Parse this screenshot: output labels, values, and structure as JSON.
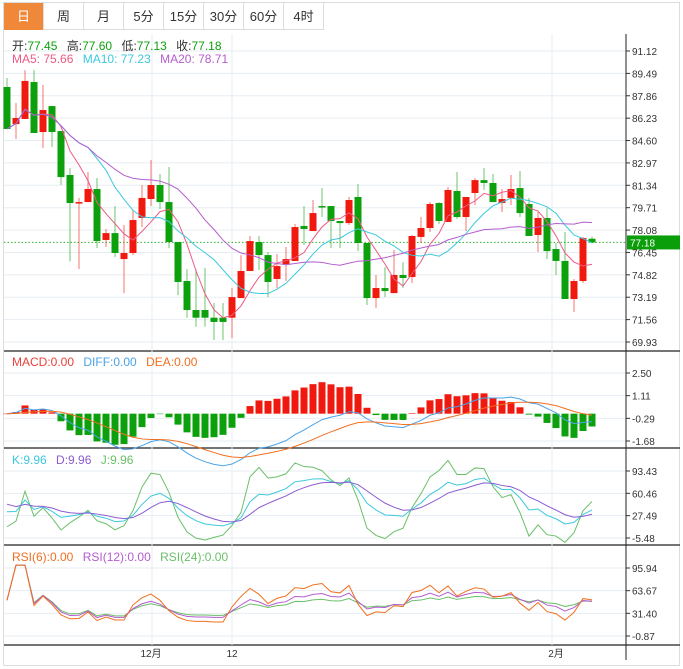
{
  "tabs": [
    "日",
    "周",
    "月",
    "5分",
    "15分",
    "30分",
    "60分",
    "4时"
  ],
  "active_tab": 0,
  "ohlc_legend": {
    "open_label": "开:",
    "open": "77.45",
    "high_label": "高:",
    "high": "77.60",
    "low_label": "低:",
    "low": "77.13",
    "close_label": "收:",
    "close": "77.18"
  },
  "ma_legend": {
    "ma5": "MA5: 75.66",
    "ma10": "MA10: 77.23",
    "ma20": "MA20: 78.71"
  },
  "macd_legend": {
    "macd": "MACD:0.00",
    "diff": "DIFF:0.00",
    "dea": "DEA:0.00"
  },
  "kdj_legend": {
    "k": "K:9.96",
    "d": "D:9.96",
    "j": "J:9.96"
  },
  "rsi_legend": {
    "rsi6": "RSI(6):0.00",
    "rsi12": "RSI(12):0.00",
    "rsi24": "RSI(24):0.00"
  },
  "current_price": "77.18",
  "colors": {
    "up": "#f0190f",
    "down": "#0ca10c",
    "ma5": "#ec5a84",
    "ma10": "#3cc8dd",
    "ma20": "#b55ccf",
    "accent": "#f0883a",
    "diff": "#4aa3e8",
    "dea": "#f07020",
    "k": "#3cc8dd",
    "d": "#8a5cd0",
    "j": "#6abf69"
  },
  "chart_data": {
    "type": "candlestick",
    "price_axis": [
      "91.12",
      "89.49",
      "87.86",
      "86.23",
      "84.60",
      "82.97",
      "81.34",
      "79.71",
      "78.08",
      "76.45",
      "74.82",
      "73.19",
      "71.56",
      "69.93"
    ],
    "price_range": [
      69.93,
      91.12
    ],
    "macd_axis": [
      "2.50",
      "1.11",
      "-0.29",
      "-1.68"
    ],
    "kdj_axis": [
      "93.43",
      "60.46",
      "27.49",
      "-5.48"
    ],
    "rsi_axis": [
      "95.94",
      "63.67",
      "31.40",
      "-0.87"
    ],
    "x_labels": [
      {
        "label": "12月",
        "index": 16
      },
      {
        "label": "12",
        "index": 25
      },
      {
        "label": "2月",
        "index": 61
      }
    ],
    "ohlc": [
      [
        88.5,
        89.15,
        85.44,
        85.44
      ],
      [
        85.8,
        87.33,
        84.71,
        86.24
      ],
      [
        86.17,
        89.73,
        86.17,
        88.94
      ],
      [
        88.86,
        89.73,
        85.15,
        85.15
      ],
      [
        85.22,
        88.64,
        84.06,
        86.82
      ],
      [
        87.11,
        87.11,
        84.13,
        85.22
      ],
      [
        85.29,
        85.29,
        81.36,
        81.94
      ],
      [
        82.09,
        82.6,
        75.79,
        80.05
      ],
      [
        80.05,
        80.42,
        75.24,
        80.12
      ],
      [
        80.12,
        82.31,
        80.12,
        81.07
      ],
      [
        81.07,
        81.87,
        76.77,
        77.28
      ],
      [
        77.36,
        78.16,
        76.85,
        77.86
      ],
      [
        77.86,
        79.83,
        76.12,
        76.41
      ],
      [
        75.97,
        78.45,
        73.49,
        76.41
      ],
      [
        76.41,
        79.54,
        76.26,
        78.81
      ],
      [
        78.96,
        81.36,
        78.3,
        80.42
      ],
      [
        80.34,
        83.18,
        79.83,
        81.36
      ],
      [
        81.36,
        82.16,
        79.61,
        80.12
      ],
      [
        80.12,
        82.67,
        76.77,
        77.21
      ],
      [
        77.21,
        77.21,
        73.34,
        74.3
      ],
      [
        74.37,
        75.24,
        71.7,
        72.26
      ],
      [
        72.26,
        75.24,
        71.04,
        71.7
      ],
      [
        72.26,
        75.32,
        71.04,
        71.7
      ],
      [
        71.7,
        72.77,
        70.07,
        71.39
      ],
      [
        71.7,
        72.77,
        70.07,
        71.39
      ],
      [
        71.7,
        73.86,
        70.21,
        73.2
      ],
      [
        73.13,
        76.26,
        73.13,
        75.1
      ],
      [
        75.1,
        77.65,
        75.1,
        77.28
      ],
      [
        77.21,
        77.65,
        75.17,
        76.26
      ],
      [
        76.26,
        76.48,
        73.2,
        74.3
      ],
      [
        74.52,
        76.34,
        73.86,
        75.46
      ],
      [
        75.61,
        76.85,
        74.37,
        75.97
      ],
      [
        75.83,
        78.52,
        75.83,
        78.3
      ],
      [
        78.38,
        79.83,
        76.99,
        78.16
      ],
      [
        78.01,
        80.27,
        78.01,
        79.32
      ],
      [
        79.83,
        81.14,
        79.03,
        79.76
      ],
      [
        79.83,
        79.83,
        76.77,
        78.74
      ],
      [
        78.74,
        78.74,
        76.77,
        78.59
      ],
      [
        78.59,
        80.49,
        78.45,
        80.27
      ],
      [
        80.49,
        81.43,
        76.55,
        77.14
      ],
      [
        77.14,
        77.14,
        72.62,
        73.13
      ],
      [
        73.13,
        74.81,
        72.4,
        73.86
      ],
      [
        73.86,
        75.39,
        73.2,
        73.64
      ],
      [
        73.49,
        76.63,
        73.49,
        74.81
      ],
      [
        74.81,
        75.75,
        73.86,
        74.59
      ],
      [
        74.66,
        77.72,
        74.23,
        77.65
      ],
      [
        77.58,
        79.03,
        77.14,
        78.23
      ],
      [
        78.23,
        80.12,
        77.94,
        79.98
      ],
      [
        80.05,
        80.12,
        78.52,
        78.74
      ],
      [
        78.67,
        81.22,
        78.67,
        81.0
      ],
      [
        80.93,
        82.31,
        78.88,
        79.03
      ],
      [
        79.03,
        80.49,
        78.01,
        80.49
      ],
      [
        80.78,
        81.87,
        79.9,
        81.72
      ],
      [
        81.72,
        82.6,
        81.0,
        81.51
      ],
      [
        81.51,
        82.16,
        80.12,
        80.12
      ],
      [
        80.05,
        81.07,
        79.39,
        80.34
      ],
      [
        80.42,
        82.09,
        79.9,
        81.07
      ],
      [
        81.14,
        82.38,
        79.03,
        79.32
      ],
      [
        79.98,
        80.42,
        77.65,
        77.65
      ],
      [
        77.72,
        79.39,
        76.48,
        78.96
      ],
      [
        78.96,
        79.68,
        75.97,
        76.55
      ],
      [
        76.7,
        77.14,
        74.81,
        75.83
      ],
      [
        75.83,
        77.94,
        73.06,
        73.06
      ],
      [
        73.06,
        74.52,
        72.11,
        74.37
      ],
      [
        74.37,
        77.58,
        74.23,
        77.5
      ],
      [
        77.45,
        77.6,
        77.13,
        77.18
      ]
    ]
  }
}
